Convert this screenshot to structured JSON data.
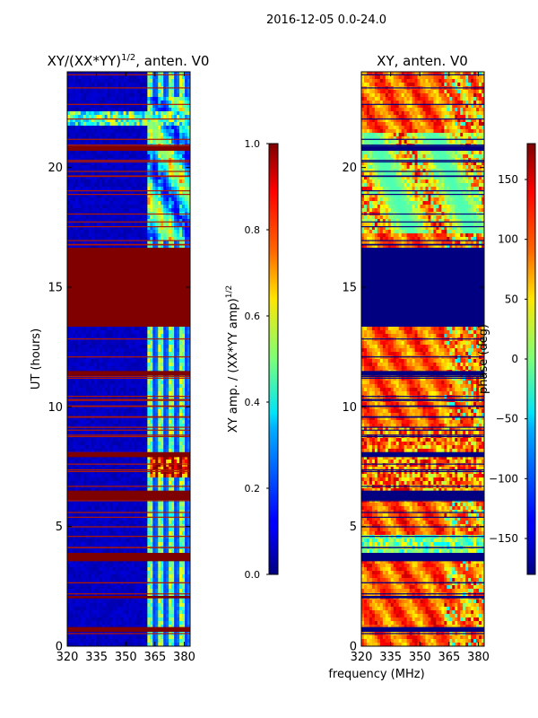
{
  "suptitle": "2016-12-05 0.0-24.0",
  "shared_xlabel": "frequency (MHz)",
  "colors": {
    "saturated": "#7f0000",
    "background_low": "#000080",
    "axis": "#000000"
  },
  "chart_data": [
    {
      "type": "heatmap",
      "title_prefix": "XY/(XX*YY)",
      "title_exponent": "1/2",
      "title_suffix": ", anten. V0",
      "ylabel": "UT (hours)",
      "x_ticks": [
        "320",
        "335",
        "350",
        "365",
        "380"
      ],
      "x_tick_values": [
        320,
        335,
        350,
        365,
        380
      ],
      "xlim": [
        320,
        383
      ],
      "y_ticks": [
        "0",
        "5",
        "10",
        "15",
        "20"
      ],
      "y_tick_values": [
        0,
        5,
        10,
        15,
        20
      ],
      "ylim": [
        0,
        24
      ],
      "colorbar": {
        "label_prefix": "XY amp. / (XX*YY amp)",
        "label_exponent": "1/2",
        "ticks": [
          "0.0",
          "0.2",
          "0.4",
          "0.6",
          "0.8",
          "1.0"
        ],
        "tick_values": [
          0.0,
          0.2,
          0.4,
          0.6,
          0.8,
          1.0
        ],
        "range": [
          0.0,
          1.0
        ]
      },
      "notes": "Mostly low values (~0.05) below 361 MHz; high-variance band 361-383 MHz; saturated (1.0) block 13.3-16.7 UT and many horizontal RFI lines."
    },
    {
      "type": "heatmap",
      "title": "XY, anten. V0",
      "x_ticks": [
        "320",
        "335",
        "350",
        "365",
        "380"
      ],
      "x_tick_values": [
        320,
        335,
        350,
        365,
        380
      ],
      "xlim": [
        320,
        383
      ],
      "y_ticks": [
        "0",
        "5",
        "10",
        "15",
        "20"
      ],
      "y_tick_values": [
        0,
        5,
        10,
        15,
        20
      ],
      "ylim": [
        0,
        24
      ],
      "colorbar": {
        "label": "phase (deg)",
        "ticks": [
          "−150",
          "−100",
          "−50",
          "0",
          "50",
          "100",
          "150"
        ],
        "tick_values": [
          -150,
          -100,
          -50,
          0,
          50,
          100,
          150
        ],
        "range": [
          -180,
          180
        ]
      },
      "notes": "Mostly positive phase (~100-150 deg) with noisy structure; -180 deg block 13.3-16.7 UT."
    }
  ]
}
